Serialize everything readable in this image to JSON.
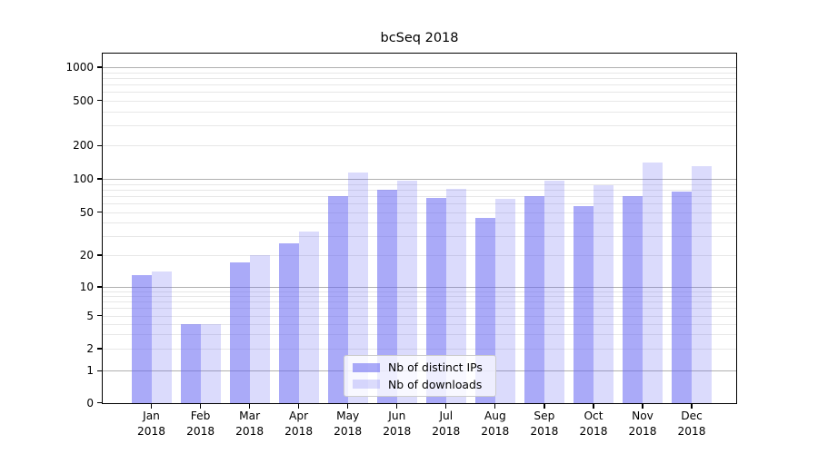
{
  "figure": {
    "title": "bcSeq 2018",
    "background": "#ffffff"
  },
  "axes": {
    "ytick_labels": [
      "0",
      "1",
      "2",
      "5",
      "10",
      "20",
      "50",
      "100",
      "200",
      "500",
      "1000"
    ],
    "xtick_months": [
      "Jan",
      "Feb",
      "Mar",
      "Apr",
      "May",
      "Jun",
      "Jul",
      "Aug",
      "Sep",
      "Oct",
      "Nov",
      "Dec"
    ],
    "xtick_year": "2018"
  },
  "legend": {
    "items": [
      {
        "label": "Nb of distinct IPs"
      },
      {
        "label": "Nb of downloads"
      }
    ]
  },
  "colors": {
    "bar_distinct_ips": "rgba(100,100,242,0.55)",
    "bar_downloads": "rgba(100,100,242,0.23)",
    "grid_major": "#b0b0b0",
    "grid_minor": "#e7e7e7",
    "spine": "#000000",
    "text": "#000000"
  },
  "chart_data": {
    "type": "bar",
    "title": "bcSeq 2018",
    "categories": [
      "Jan 2018",
      "Feb 2018",
      "Mar 2018",
      "Apr 2018",
      "May 2018",
      "Jun 2018",
      "Jul 2018",
      "Aug 2018",
      "Sep 2018",
      "Oct 2018",
      "Nov 2018",
      "Dec 2018"
    ],
    "series": [
      {
        "name": "Nb of distinct IPs",
        "values": [
          13,
          4,
          17,
          26,
          70,
          80,
          67,
          44,
          70,
          57,
          70,
          77
        ]
      },
      {
        "name": "Nb of downloads",
        "values": [
          14,
          4,
          20,
          33,
          115,
          97,
          81,
          66,
          97,
          88,
          140,
          130
        ]
      }
    ],
    "xlabel": "",
    "ylabel": "",
    "yscale": "symlog",
    "yticks": [
      0,
      1,
      2,
      5,
      10,
      20,
      50,
      100,
      200,
      500,
      1000
    ],
    "ylim": [
      0,
      1320
    ],
    "grid": "horizontal major and minor gridlines",
    "legend_position": "lower center"
  }
}
